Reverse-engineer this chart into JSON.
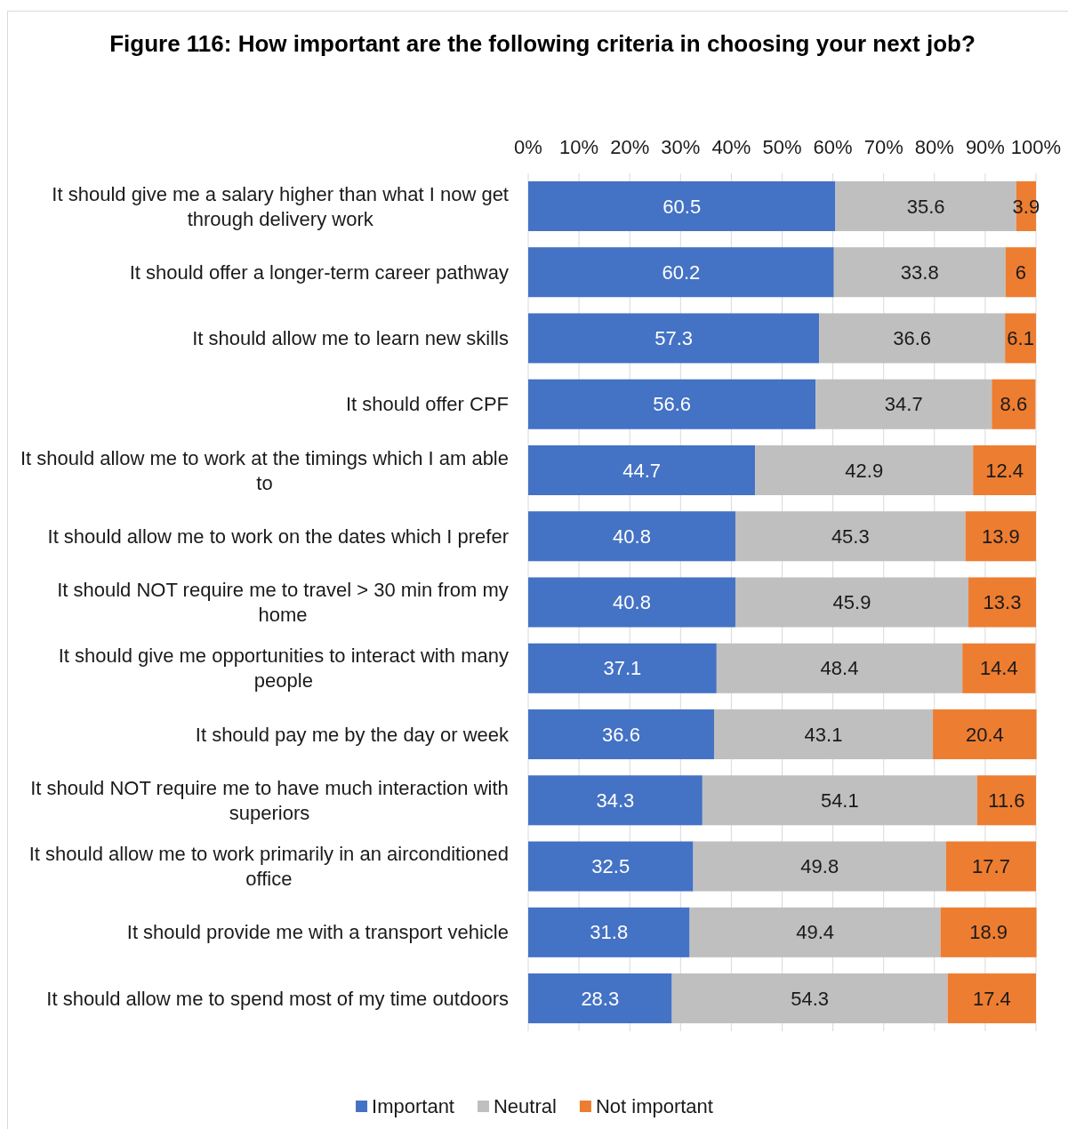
{
  "chart_data": {
    "type": "bar",
    "orientation": "horizontal",
    "stacked": true,
    "title": "Figure 116: How important are the following criteria in choosing your next job?",
    "categories": [
      "It should give me a salary higher than what I now get through delivery work",
      "It should offer a longer-term career pathway",
      "It should allow me to learn new skills",
      "It should offer CPF",
      "It should allow me to work at the timings which I am able to",
      "It should allow me to work on the dates which I prefer",
      "It should NOT require me to travel > 30 min from my home",
      "It should give me opportunities to interact with many people",
      "It should pay me by the day or week",
      "It should NOT require me to have much interaction with superiors",
      "It should allow me to work primarily in an airconditioned office",
      "It should provide me with a transport vehicle",
      "It should allow me to spend most of my time outdoors"
    ],
    "series": [
      {
        "name": "Important",
        "color": "#4472c4",
        "values": [
          60.5,
          60.2,
          57.3,
          56.6,
          44.7,
          40.8,
          40.8,
          37.1,
          36.6,
          34.3,
          32.5,
          31.8,
          28.3
        ]
      },
      {
        "name": "Neutral",
        "color": "#bfbfbf",
        "values": [
          35.6,
          33.8,
          36.6,
          34.7,
          42.9,
          45.3,
          45.9,
          48.4,
          43.1,
          54.1,
          49.8,
          49.4,
          54.3
        ]
      },
      {
        "name": "Not important",
        "color": "#ed7d31",
        "values": [
          3.9,
          6,
          6.1,
          8.6,
          12.4,
          13.9,
          13.3,
          14.4,
          20.4,
          11.6,
          17.7,
          18.9,
          17.4
        ]
      }
    ],
    "xlim": [
      0,
      100
    ],
    "xticks": [
      {
        "value": 0,
        "label": "0%"
      },
      {
        "value": 10,
        "label": "10%"
      },
      {
        "value": 20,
        "label": "20%"
      },
      {
        "value": 30,
        "label": "30%"
      },
      {
        "value": 40,
        "label": "40%"
      },
      {
        "value": 50,
        "label": "50%"
      },
      {
        "value": 60,
        "label": "60%"
      },
      {
        "value": 70,
        "label": "70%"
      },
      {
        "value": 80,
        "label": "80%"
      },
      {
        "value": 90,
        "label": "90%"
      },
      {
        "value": 100,
        "label": "100%"
      }
    ],
    "grid": "x",
    "data_labels": true,
    "legend": "bottom"
  }
}
